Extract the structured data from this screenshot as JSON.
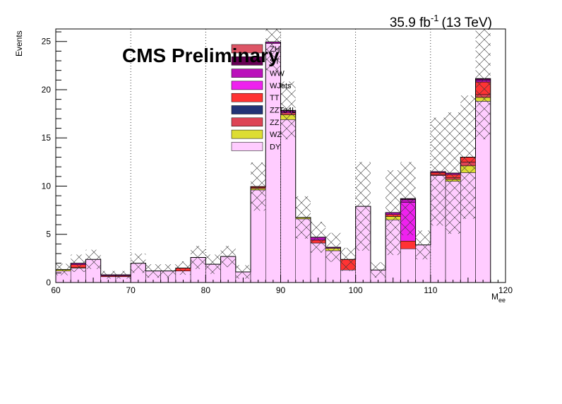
{
  "chart_data": {
    "type": "bar",
    "stacked": true,
    "histogram": true,
    "title": "",
    "cms_label": "CMS Preliminary",
    "lumi_text": "35.9 fb",
    "lumi_exp": "-1",
    "lumi_energy": "(13 TeV)",
    "ylabel": "Events",
    "xlabel_main": "M",
    "xlabel_sub": "ee",
    "xlim": [
      60,
      120
    ],
    "ylim": [
      0,
      26.3
    ],
    "xticks": [
      60,
      70,
      80,
      90,
      100,
      110,
      120
    ],
    "yticks": [
      0,
      5,
      10,
      15,
      20,
      25
    ],
    "grid_x": [
      70,
      80,
      90,
      100,
      110
    ],
    "bin_edges": [
      60,
      62,
      64,
      66,
      68,
      70,
      72,
      74,
      76,
      78,
      80,
      82,
      84,
      86,
      88,
      90,
      92,
      94,
      96,
      98,
      100,
      102,
      104,
      106,
      108,
      110,
      112,
      114,
      116,
      118,
      120
    ],
    "legend_position": "top-center",
    "series": [
      {
        "name": "DY",
        "color": "#ffccff",
        "values": [
          1.2,
          1.5,
          2.4,
          0.6,
          0.6,
          2.0,
          1.2,
          1.2,
          1.2,
          2.6,
          1.9,
          2.7,
          1.1,
          9.6,
          24.8,
          16.9,
          6.6,
          4.1,
          3.3,
          1.3,
          7.9,
          1.3,
          6.5,
          3.5,
          3.9,
          11.1,
          10.5,
          11.4,
          18.8,
          0
        ]
      },
      {
        "name": "WZ",
        "color": "#dddd33",
        "values": [
          0.15,
          0.05,
          0,
          0,
          0,
          0,
          0,
          0,
          0,
          0,
          0,
          0,
          0,
          0.15,
          0,
          0.5,
          0.15,
          0,
          0.25,
          0,
          0,
          0,
          0.35,
          0,
          0,
          0,
          0.2,
          0.7,
          0.4,
          0
        ]
      },
      {
        "name": "ZZ",
        "color": "#dd4455",
        "values": [
          0,
          0,
          0,
          0,
          0,
          0,
          0,
          0,
          0,
          0,
          0,
          0,
          0,
          0.1,
          0,
          0.2,
          0,
          0,
          0,
          0,
          0,
          0,
          0,
          0,
          0,
          0.1,
          0.2,
          0.4,
          0.3,
          0
        ]
      },
      {
        "name": "ZZTo4L",
        "color": "#223377",
        "values": [
          0,
          0,
          0,
          0,
          0,
          0,
          0,
          0,
          0,
          0,
          0,
          0,
          0,
          0,
          0,
          0,
          0,
          0,
          0,
          0,
          0,
          0,
          0,
          0,
          0,
          0,
          0,
          0,
          0,
          0
        ]
      },
      {
        "name": "TT",
        "color": "#ff3333",
        "values": [
          0,
          0.3,
          0,
          0.1,
          0.1,
          0,
          0,
          0,
          0.3,
          0,
          0,
          0,
          0,
          0.1,
          0,
          0,
          0,
          0.3,
          0,
          1.1,
          0,
          0,
          0.2,
          0.8,
          0,
          0.2,
          0.3,
          0.5,
          1.3,
          0
        ]
      },
      {
        "name": "WJets",
        "color": "#ee22ee",
        "values": [
          0,
          0,
          0,
          0,
          0,
          0,
          0,
          0,
          0,
          0,
          0,
          0,
          0,
          0,
          0,
          0,
          0,
          0,
          0,
          0,
          0,
          0,
          0,
          4.0,
          0,
          0,
          0,
          0,
          0,
          0
        ]
      },
      {
        "name": "WW",
        "color": "#bb11bb",
        "values": [
          0,
          0.15,
          0,
          0.1,
          0.1,
          0,
          0,
          0,
          0,
          0,
          0,
          0,
          0,
          0,
          0.15,
          0.2,
          0,
          0.3,
          0.1,
          0,
          0,
          0,
          0.2,
          0.3,
          0,
          0.1,
          0.15,
          0,
          0.2,
          0
        ]
      },
      {
        "name": "ST",
        "color": "#660055",
        "values": [
          0,
          0,
          0,
          0,
          0,
          0,
          0,
          0,
          0,
          0,
          0,
          0,
          0,
          0,
          0,
          0.05,
          0,
          0,
          0,
          0,
          0,
          0,
          0,
          0.1,
          0,
          0,
          0,
          0,
          0.15,
          0
        ]
      },
      {
        "name": "ZH",
        "color": "#dd5566",
        "values": [
          0,
          0,
          0,
          0,
          0,
          0,
          0,
          0,
          0,
          0,
          0,
          0,
          0,
          0,
          0,
          0,
          0,
          0,
          0,
          0,
          0,
          0,
          0,
          0,
          0,
          0,
          0,
          0,
          0,
          0
        ]
      }
    ],
    "uncertainty": [
      0.6,
      0.9,
      1.0,
      0.4,
      0.4,
      1.0,
      0.7,
      0.7,
      0.7,
      1.2,
      1.0,
      1.1,
      0.7,
      2.5,
      3.0,
      3.0,
      2.2,
      1.6,
      1.5,
      1.2,
      4.6,
      0.8,
      4.4,
      3.8,
      1.5,
      5.6,
      6.3,
      6.4,
      6.3,
      0
    ],
    "legend_order": [
      "ZH",
      "ST",
      "WW",
      "WJets",
      "TT",
      "ZZTo4L",
      "ZZ",
      "WZ",
      "DY"
    ]
  }
}
